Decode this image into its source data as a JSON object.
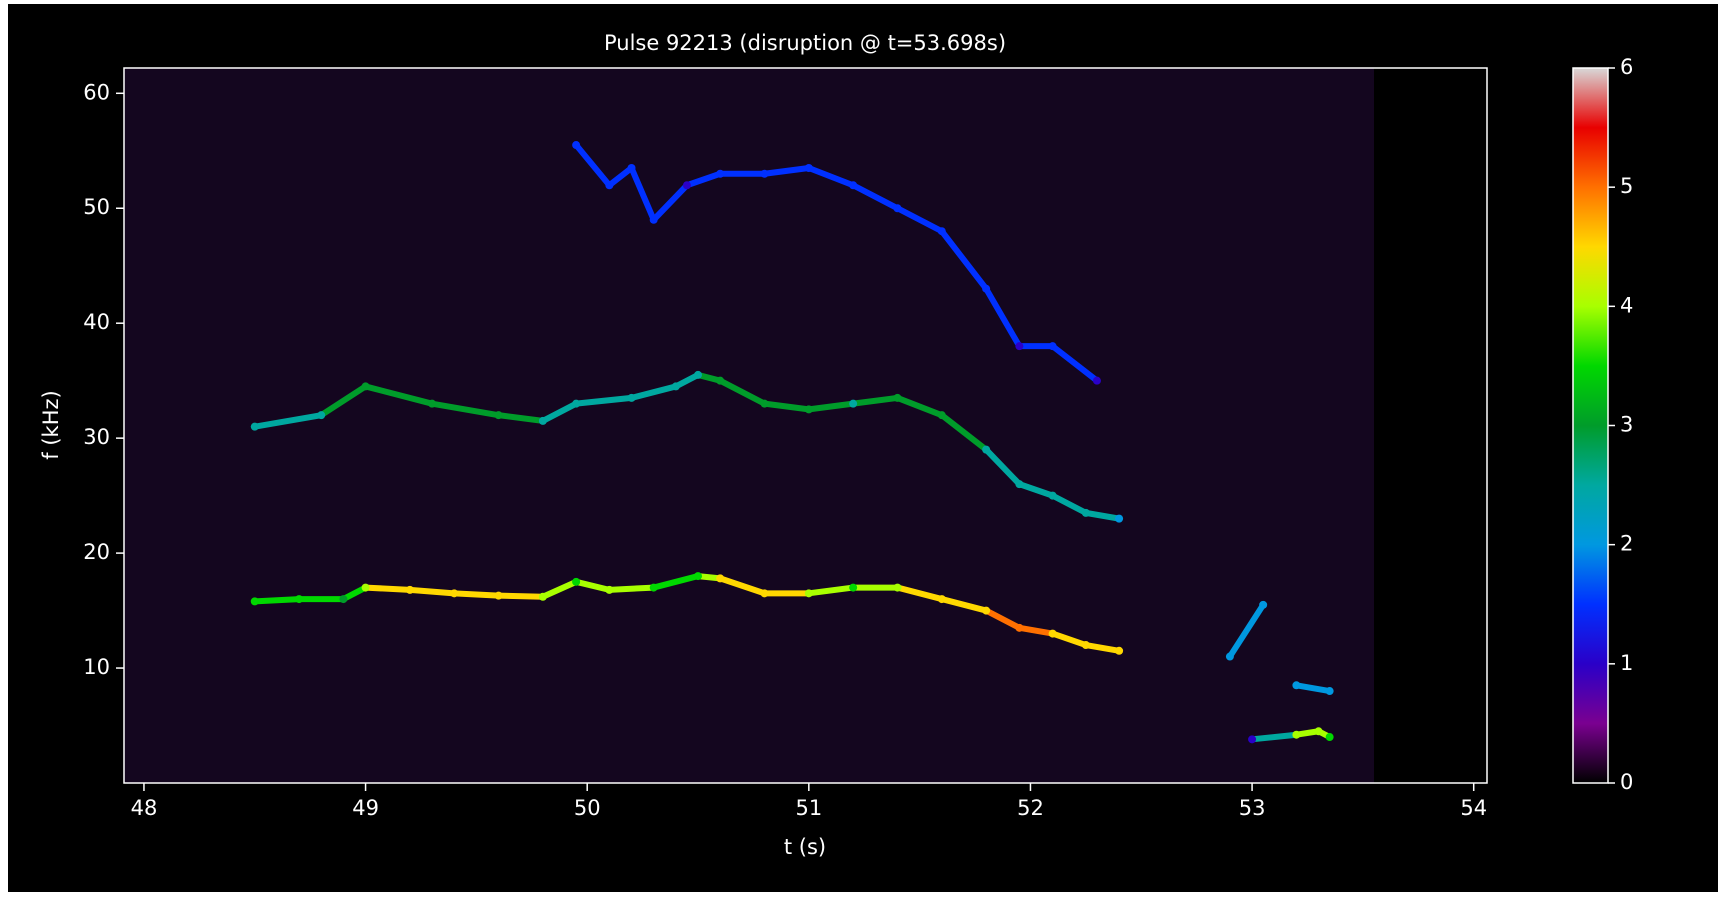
{
  "chart_data": {
    "type": "spectrogram",
    "title": "Pulse 92213 (disruption @ t=53.698s)",
    "xlabel": "t (s)",
    "ylabel": "f (kHz)",
    "xlim": [
      47.91,
      54.06
    ],
    "ylim": [
      0,
      62.2
    ],
    "xticks": [
      48,
      49,
      50,
      51,
      52,
      53,
      54
    ],
    "yticks": [
      10,
      20,
      30,
      40,
      50,
      60
    ],
    "colorbar": {
      "lim": [
        0,
        6
      ],
      "ticks": [
        0,
        1,
        2,
        3,
        4,
        5,
        6
      ],
      "colormap": [
        "#000000",
        "#7a0090",
        "#2a00c8",
        "#0030ff",
        "#0098e0",
        "#00a8a0",
        "#009c2a",
        "#00d800",
        "#a8ff00",
        "#ffd800",
        "#ff7000",
        "#e80000",
        "#d8d8d8"
      ]
    },
    "ridges": [
      {
        "x": [
          48.5,
          48.7,
          48.9,
          49.0,
          49.2,
          49.4,
          49.6,
          49.8,
          49.95,
          50.1,
          50.3,
          50.5,
          50.6,
          50.8,
          51.0,
          51.2,
          51.4,
          51.6,
          51.8,
          51.95,
          52.1,
          52.25,
          52.4
        ],
        "values": [
          15.8,
          16,
          16,
          17,
          16.8,
          16.5,
          16.3,
          16.2,
          17.5,
          16.8,
          17,
          18,
          17.8,
          16.5,
          16.5,
          17,
          17,
          16,
          15,
          13.5,
          13,
          12,
          11.5
        ],
        "z": [
          3.5,
          3.5,
          3,
          4,
          4.5,
          4.5,
          4.5,
          4,
          3.5,
          4,
          3.5,
          3.5,
          4.5,
          4.5,
          4,
          3.5,
          4,
          4.5,
          4.5,
          5,
          4.5,
          4.5,
          4.5
        ]
      },
      {
        "x": [
          48.5,
          48.8,
          49.0,
          49.3,
          49.6,
          49.8,
          49.95,
          50.2,
          50.4,
          50.5,
          50.6,
          50.8,
          51.0,
          51.2,
          51.4,
          51.6,
          51.8,
          51.95,
          52.1,
          52.25,
          52.4
        ],
        "values": [
          31,
          32,
          34.5,
          33,
          32,
          31.5,
          33,
          33.5,
          34.5,
          35.5,
          35,
          33,
          32.5,
          33,
          33.5,
          32,
          29,
          26,
          25,
          23.5,
          23
        ],
        "z": [
          2.5,
          2.5,
          3,
          3,
          3,
          2.5,
          2.5,
          2.5,
          2.5,
          2.5,
          3,
          3,
          3,
          2.5,
          3,
          3,
          2.5,
          2.5,
          2.5,
          2.5,
          2
        ]
      },
      {
        "x": [
          49.95,
          50.1,
          50.2,
          50.3,
          50.45,
          50.6,
          50.8,
          51.0,
          51.2,
          51.4,
          51.6,
          51.8,
          51.95,
          52.1,
          52.3
        ],
        "values": [
          55.5,
          52,
          53.5,
          49,
          52,
          53,
          53,
          53.5,
          52,
          50,
          48,
          43,
          38,
          38,
          35
        ],
        "z": [
          1.5,
          1.5,
          1.5,
          1.5,
          1,
          1.5,
          1.5,
          1.5,
          1.5,
          1.5,
          1.5,
          1.5,
          1,
          1.5,
          1
        ]
      },
      {
        "x": [
          52.9,
          53.05
        ],
        "values": [
          11,
          15.5
        ],
        "z": [
          2,
          2
        ]
      },
      {
        "x": [
          53.2,
          53.35
        ],
        "values": [
          8.5,
          8
        ],
        "z": [
          2,
          2
        ]
      },
      {
        "x": [
          53.0,
          53.2,
          53.3,
          53.35
        ],
        "values": [
          3.8,
          4.2,
          4.5,
          4
        ],
        "z": [
          0.8,
          4,
          4,
          3.5
        ]
      }
    ]
  }
}
